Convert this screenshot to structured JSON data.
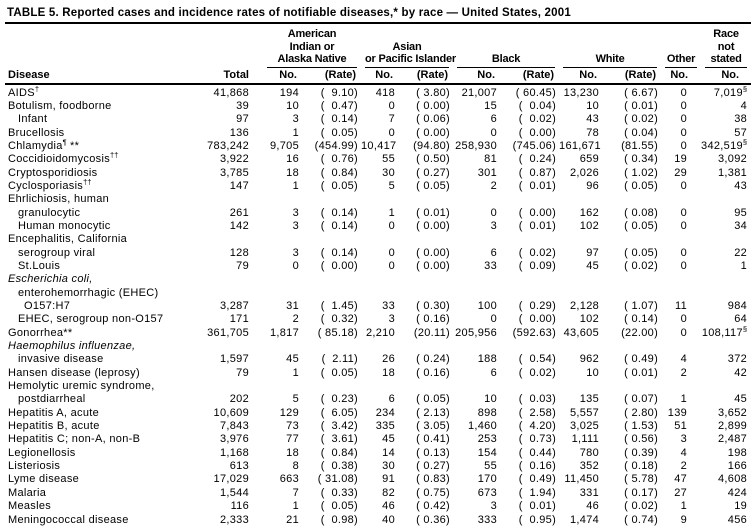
{
  "title": "TABLE 5. Reported cases and incidence rates of notifiable diseases,* by race — United States, 2001",
  "table": {
    "columns": {
      "disease": "Disease",
      "total": "Total"
    },
    "groups": [
      {
        "label": "American\nIndian or\nAlaska Native",
        "no": "No.",
        "rate": "(Rate)"
      },
      {
        "label": "Asian\nor Pacific Islander",
        "no": "No.",
        "rate": "(Rate)"
      },
      {
        "label": "Black",
        "no": "No.",
        "rate": "(Rate)"
      },
      {
        "label": "White",
        "no": "No.",
        "rate": "(Rate)"
      },
      {
        "label": "Other",
        "no": "No."
      },
      {
        "label": "Race\nnot\nstated",
        "no": "No."
      }
    ],
    "rows": [
      {
        "disease": "AIDS",
        "sup": "†",
        "indent": 0,
        "total": "41,868",
        "aian_no": "194",
        "aian_rate": "(  9.10)",
        "api_no": "418",
        "api_rate": "( 3.80)",
        "black_no": "21,007",
        "black_rate": "( 60.45)",
        "white_no": "13,230",
        "white_rate": "( 6.67)",
        "other_no": "0",
        "rns_no": "7,019",
        "rns_sup": "§"
      },
      {
        "disease": "Botulism, foodborne",
        "indent": 0,
        "total": "39",
        "aian_no": "10",
        "aian_rate": "(  0.47)",
        "api_no": "0",
        "api_rate": "( 0.00)",
        "black_no": "15",
        "black_rate": "(  0.04)",
        "white_no": "10",
        "white_rate": "( 0.01)",
        "other_no": "0",
        "rns_no": "4"
      },
      {
        "disease": "Infant",
        "indent": 1,
        "total": "97",
        "aian_no": "3",
        "aian_rate": "(  0.14)",
        "api_no": "7",
        "api_rate": "( 0.06)",
        "black_no": "6",
        "black_rate": "(  0.02)",
        "white_no": "43",
        "white_rate": "( 0.02)",
        "other_no": "0",
        "rns_no": "38"
      },
      {
        "disease": "Brucellosis",
        "indent": 0,
        "total": "136",
        "aian_no": "1",
        "aian_rate": "(  0.05)",
        "api_no": "0",
        "api_rate": "( 0.00)",
        "black_no": "0",
        "black_rate": "(  0.00)",
        "white_no": "78",
        "white_rate": "( 0.04)",
        "other_no": "0",
        "rns_no": "57"
      },
      {
        "disease": "Chlamydia",
        "sup": "¶",
        "suffix": " **",
        "indent": 0,
        "total": "783,242",
        "aian_no": "9,705",
        "aian_rate": "(454.99)",
        "api_no": "10,417",
        "api_rate": "(94.80)",
        "black_no": "258,930",
        "black_rate": "(745.06)",
        "white_no": "161,671",
        "white_rate": "(81.55)",
        "other_no": "0",
        "rns_no": "342,519",
        "rns_sup": "§"
      },
      {
        "disease": "Coccidioidomycosis",
        "sup": "††",
        "indent": 0,
        "total": "3,922",
        "aian_no": "16",
        "aian_rate": "(  0.76)",
        "api_no": "55",
        "api_rate": "( 0.50)",
        "black_no": "81",
        "black_rate": "(  0.24)",
        "white_no": "659",
        "white_rate": "( 0.34)",
        "other_no": "19",
        "rns_no": "3,092"
      },
      {
        "disease": "Cryptosporidiosis",
        "indent": 0,
        "total": "3,785",
        "aian_no": "18",
        "aian_rate": "(  0.84)",
        "api_no": "30",
        "api_rate": "( 0.27)",
        "black_no": "301",
        "black_rate": "(  0.87)",
        "white_no": "2,026",
        "white_rate": "( 1.02)",
        "other_no": "29",
        "rns_no": "1,381"
      },
      {
        "disease": "Cyclosporiasis",
        "sup": "††",
        "indent": 0,
        "total": "147",
        "aian_no": "1",
        "aian_rate": "(  0.05)",
        "api_no": "5",
        "api_rate": "( 0.05)",
        "black_no": "2",
        "black_rate": "(  0.01)",
        "white_no": "96",
        "white_rate": "( 0.05)",
        "other_no": "0",
        "rns_no": "43"
      },
      {
        "disease": "Ehrlichiosis, human",
        "indent": 0
      },
      {
        "disease": "granulocytic",
        "indent": 1,
        "total": "261",
        "aian_no": "3",
        "aian_rate": "(  0.14)",
        "api_no": "1",
        "api_rate": "( 0.01)",
        "black_no": "0",
        "black_rate": "(  0.00)",
        "white_no": "162",
        "white_rate": "( 0.08)",
        "other_no": "0",
        "rns_no": "95"
      },
      {
        "disease": "Human monocytic",
        "indent": 1,
        "total": "142",
        "aian_no": "3",
        "aian_rate": "(  0.14)",
        "api_no": "0",
        "api_rate": "( 0.00)",
        "black_no": "3",
        "black_rate": "(  0.01)",
        "white_no": "102",
        "white_rate": "( 0.05)",
        "other_no": "0",
        "rns_no": "34"
      },
      {
        "disease": "Encephalitis, California",
        "indent": 0
      },
      {
        "disease": "serogroup viral",
        "indent": 1,
        "total": "128",
        "aian_no": "3",
        "aian_rate": "(  0.14)",
        "api_no": "0",
        "api_rate": "( 0.00)",
        "black_no": "6",
        "black_rate": "(  0.02)",
        "white_no": "97",
        "white_rate": "( 0.05)",
        "other_no": "0",
        "rns_no": "22"
      },
      {
        "disease": "St.Louis",
        "indent": 1,
        "total": "79",
        "aian_no": "0",
        "aian_rate": "(  0.00)",
        "api_no": "0",
        "api_rate": "( 0.00)",
        "black_no": "33",
        "black_rate": "(  0.09)",
        "white_no": "45",
        "white_rate": "( 0.02)",
        "other_no": "0",
        "rns_no": "1"
      },
      {
        "disease": "Escherichia coli,",
        "indent": 0,
        "italic": true
      },
      {
        "disease": "enterohemorrhagic (EHEC)",
        "indent": 1
      },
      {
        "disease": "O157:H7",
        "indent": 2,
        "total": "3,287",
        "aian_no": "31",
        "aian_rate": "(  1.45)",
        "api_no": "33",
        "api_rate": "( 0.30)",
        "black_no": "100",
        "black_rate": "(  0.29)",
        "white_no": "2,128",
        "white_rate": "( 1.07)",
        "other_no": "11",
        "rns_no": "984"
      },
      {
        "disease": "EHEC, serogroup non-O157",
        "indent": 1,
        "total": "171",
        "aian_no": "2",
        "aian_rate": "(  0.32)",
        "api_no": "3",
        "api_rate": "( 0.16)",
        "black_no": "0",
        "black_rate": "(  0.00)",
        "white_no": "102",
        "white_rate": "( 0.14)",
        "other_no": "0",
        "rns_no": "64"
      },
      {
        "disease": "Gonorrhea",
        "suffix": "**",
        "indent": 0,
        "total": "361,705",
        "aian_no": "1,817",
        "aian_rate": "( 85.18)",
        "api_no": "2,210",
        "api_rate": "(20.11)",
        "black_no": "205,956",
        "black_rate": "(592.63)",
        "white_no": "43,605",
        "white_rate": "(22.00)",
        "other_no": "0",
        "rns_no": "108,117",
        "rns_sup": "§"
      },
      {
        "disease": "Haemophilus influenzae,",
        "indent": 0,
        "italic": true
      },
      {
        "disease": "invasive disease",
        "indent": 1,
        "total": "1,597",
        "aian_no": "45",
        "aian_rate": "(  2.11)",
        "api_no": "26",
        "api_rate": "( 0.24)",
        "black_no": "188",
        "black_rate": "(  0.54)",
        "white_no": "962",
        "white_rate": "( 0.49)",
        "other_no": "4",
        "rns_no": "372"
      },
      {
        "disease": "Hansen disease (leprosy)",
        "indent": 0,
        "total": "79",
        "aian_no": "1",
        "aian_rate": "(  0.05)",
        "api_no": "18",
        "api_rate": "( 0.16)",
        "black_no": "6",
        "black_rate": "(  0.02)",
        "white_no": "10",
        "white_rate": "( 0.01)",
        "other_no": "2",
        "rns_no": "42"
      },
      {
        "disease": "Hemolytic uremic syndrome,",
        "indent": 0
      },
      {
        "disease": "postdiarrheal",
        "indent": 1,
        "total": "202",
        "aian_no": "5",
        "aian_rate": "(  0.23)",
        "api_no": "6",
        "api_rate": "( 0.05)",
        "black_no": "10",
        "black_rate": "(  0.03)",
        "white_no": "135",
        "white_rate": "( 0.07)",
        "other_no": "1",
        "rns_no": "45"
      },
      {
        "disease": "Hepatitis A, acute",
        "indent": 0,
        "total": "10,609",
        "aian_no": "129",
        "aian_rate": "(  6.05)",
        "api_no": "234",
        "api_rate": "( 2.13)",
        "black_no": "898",
        "black_rate": "(  2.58)",
        "white_no": "5,557",
        "white_rate": "( 2.80)",
        "other_no": "139",
        "rns_no": "3,652"
      },
      {
        "disease": "Hepatitis B, acute",
        "indent": 0,
        "total": "7,843",
        "aian_no": "73",
        "aian_rate": "(  3.42)",
        "api_no": "335",
        "api_rate": "( 3.05)",
        "black_no": "1,460",
        "black_rate": "(  4.20)",
        "white_no": "3,025",
        "white_rate": "( 1.53)",
        "other_no": "51",
        "rns_no": "2,899"
      },
      {
        "disease": "Hepatitis C; non-A, non-B",
        "indent": 0,
        "total": "3,976",
        "aian_no": "77",
        "aian_rate": "(  3.61)",
        "api_no": "45",
        "api_rate": "( 0.41)",
        "black_no": "253",
        "black_rate": "(  0.73)",
        "white_no": "1,111",
        "white_rate": "( 0.56)",
        "other_no": "3",
        "rns_no": "2,487"
      },
      {
        "disease": "Legionellosis",
        "indent": 0,
        "total": "1,168",
        "aian_no": "18",
        "aian_rate": "(  0.84)",
        "api_no": "14",
        "api_rate": "( 0.13)",
        "black_no": "154",
        "black_rate": "(  0.44)",
        "white_no": "780",
        "white_rate": "( 0.39)",
        "other_no": "4",
        "rns_no": "198"
      },
      {
        "disease": "Listeriosis",
        "indent": 0,
        "total": "613",
        "aian_no": "8",
        "aian_rate": "(  0.38)",
        "api_no": "30",
        "api_rate": "( 0.27)",
        "black_no": "55",
        "black_rate": "(  0.16)",
        "white_no": "352",
        "white_rate": "( 0.18)",
        "other_no": "2",
        "rns_no": "166"
      },
      {
        "disease": "Lyme disease",
        "indent": 0,
        "total": "17,029",
        "aian_no": "663",
        "aian_rate": "( 31.08)",
        "api_no": "91",
        "api_rate": "( 0.83)",
        "black_no": "170",
        "black_rate": "(  0.49)",
        "white_no": "11,450",
        "white_rate": "( 5.78)",
        "other_no": "47",
        "rns_no": "4,608"
      },
      {
        "disease": "Malaria",
        "indent": 0,
        "total": "1,544",
        "aian_no": "7",
        "aian_rate": "(  0.33)",
        "api_no": "82",
        "api_rate": "( 0.75)",
        "black_no": "673",
        "black_rate": "(  1.94)",
        "white_no": "331",
        "white_rate": "( 0.17)",
        "other_no": "27",
        "rns_no": "424"
      },
      {
        "disease": "Measles",
        "indent": 0,
        "total": "116",
        "aian_no": "1",
        "aian_rate": "(  0.05)",
        "api_no": "46",
        "api_rate": "( 0.42)",
        "black_no": "3",
        "black_rate": "(  0.01)",
        "white_no": "46",
        "white_rate": "( 0.02)",
        "other_no": "1",
        "rns_no": "19"
      },
      {
        "disease": "Meningococcal disease",
        "indent": 0,
        "total": "2,333",
        "aian_no": "21",
        "aian_rate": "(  0.98)",
        "api_no": "40",
        "api_rate": "( 0.36)",
        "black_no": "333",
        "black_rate": "(  0.95)",
        "white_no": "1,474",
        "white_rate": "( 0.74)",
        "other_no": "9",
        "rns_no": "456"
      }
    ]
  }
}
